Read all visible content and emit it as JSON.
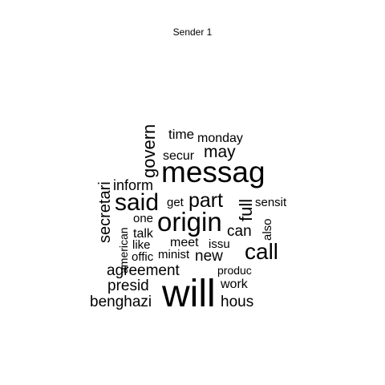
{
  "title": "Sender 1",
  "word_cloud": {
    "words": [
      {
        "text": "messag"
      },
      {
        "text": "will"
      },
      {
        "text": "origin"
      },
      {
        "text": "said"
      },
      {
        "text": "call"
      },
      {
        "text": "govern"
      },
      {
        "text": "part"
      },
      {
        "text": "secretari"
      },
      {
        "text": "full"
      },
      {
        "text": "may"
      },
      {
        "text": "inform"
      },
      {
        "text": "agreement"
      },
      {
        "text": "presid"
      },
      {
        "text": "benghazi"
      },
      {
        "text": "hous"
      },
      {
        "text": "can"
      },
      {
        "text": "new"
      },
      {
        "text": "time"
      },
      {
        "text": "monday"
      },
      {
        "text": "secur"
      },
      {
        "text": "meet"
      },
      {
        "text": "issu"
      },
      {
        "text": "work"
      },
      {
        "text": "sensit"
      },
      {
        "text": "talk"
      },
      {
        "text": "one"
      },
      {
        "text": "get"
      },
      {
        "text": "like"
      },
      {
        "text": "offic"
      },
      {
        "text": "minist"
      },
      {
        "text": "produc"
      },
      {
        "text": "also"
      },
      {
        "text": "american"
      }
    ]
  }
}
